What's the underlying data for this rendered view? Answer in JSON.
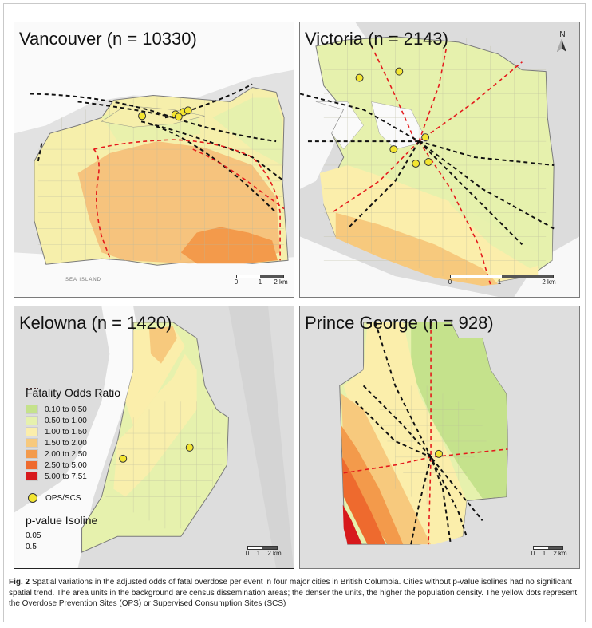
{
  "figure": {
    "caption_label": "Fig. 2",
    "caption_text": "Spatial variations in the adjusted odds of fatal overdose per event in four major cities in British Columbia. Cities without p-value isolines had no significant spatial trend. The area units in the background are census dissemination areas; the denser the units, the higher the population density. The yellow dots represent the Overdose Prevention Sites (OPS) or Supervised Consumption Sites (SCS)"
  },
  "panels": {
    "vancouver": {
      "title": "Vancouver (n = 10330)",
      "place_label": "SEA ISLAND",
      "scale_labels": [
        "0",
        "1",
        "2 km"
      ]
    },
    "victoria": {
      "title": "Victoria (n = 2143)",
      "north_label": "N",
      "scale_labels": [
        "0",
        "1",
        "2 km"
      ]
    },
    "kelowna": {
      "title": "Kelowna (n = 1420)",
      "scale_labels": [
        "0",
        "1",
        "2 km"
      ]
    },
    "prince_george": {
      "title": "Prince George (n = 928)",
      "scale_labels": [
        "0",
        "1",
        "2 km"
      ]
    }
  },
  "legend": {
    "title": "Fatality Odds Ratio",
    "classes": [
      {
        "label": "0.10 to 0.50",
        "color": "#c5e28c"
      },
      {
        "label": "0.50 to 1.00",
        "color": "#e6f1ad"
      },
      {
        "label": "1.00 to 1.50",
        "color": "#fbeeab"
      },
      {
        "label": "1.50 to 2.00",
        "color": "#f7c97d"
      },
      {
        "label": "2.00 to 2.50",
        "color": "#f39a4b"
      },
      {
        "label": "2.50 to 5.00",
        "color": "#ee6a2e"
      },
      {
        "label": "5.00 to 7.51",
        "color": "#d7191c"
      }
    ],
    "ops_label": "OPS/SCS",
    "ops_color": "#f3e531",
    "isoline_title": "p-value Isoline",
    "isolines": [
      {
        "label": "0.05",
        "color": "#e41a1c"
      },
      {
        "label": "0.5",
        "color": "#111111"
      }
    ]
  },
  "colors": {
    "basemap_land": "#e4e4e4",
    "water": "#ffffff",
    "boundary": "#8a8a8a"
  }
}
